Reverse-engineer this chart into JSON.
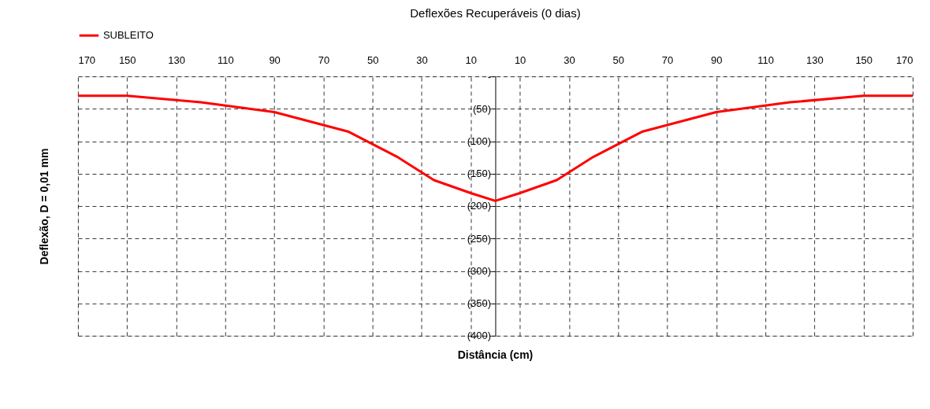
{
  "chart_data": {
    "type": "line",
    "title": "Deflexões Recuperáveis (0 dias)",
    "xlabel": "Distância (cm)",
    "ylabel": "Deflexão, D = 0,01 mm",
    "x": [
      -170,
      -150,
      -120,
      -90,
      -60,
      -40,
      -25,
      -10,
      0,
      10,
      25,
      40,
      60,
      90,
      120,
      150,
      170
    ],
    "series": [
      {
        "name": "SUBLEITO",
        "color": "#ff0000",
        "values": [
          -30,
          -30,
          -40,
          -55,
          -85,
          -124,
          -160,
          -180,
          -192,
          -180,
          -160,
          -124,
          -85,
          -55,
          -40,
          -30,
          -30
        ]
      }
    ],
    "xlim": [
      -170,
      170
    ],
    "xticks": [
      {
        "value": -170,
        "label": "170"
      },
      {
        "value": -150,
        "label": "150"
      },
      {
        "value": -130,
        "label": "130"
      },
      {
        "value": -110,
        "label": "110"
      },
      {
        "value": -90,
        "label": "90"
      },
      {
        "value": -70,
        "label": "70"
      },
      {
        "value": -50,
        "label": "50"
      },
      {
        "value": -30,
        "label": "30"
      },
      {
        "value": -10,
        "label": "10"
      },
      10,
      30,
      50,
      70,
      90,
      110,
      130,
      150,
      170
    ],
    "ylim": [
      -400,
      0
    ],
    "yticks": [
      {
        "value": 0,
        "label": "-"
      },
      {
        "value": -50,
        "label": "(50)"
      },
      {
        "value": -100,
        "label": "(100)"
      },
      {
        "value": -150,
        "label": "(150)"
      },
      {
        "value": -200,
        "label": "(200)"
      },
      {
        "value": -250,
        "label": "(250)"
      },
      {
        "value": -300,
        "label": "(300)"
      },
      {
        "value": -350,
        "label": "(350)"
      },
      {
        "value": -400,
        "label": "(400)"
      }
    ],
    "grid": true,
    "legend": "top",
    "marker": "none",
    "line_style": "solid"
  }
}
